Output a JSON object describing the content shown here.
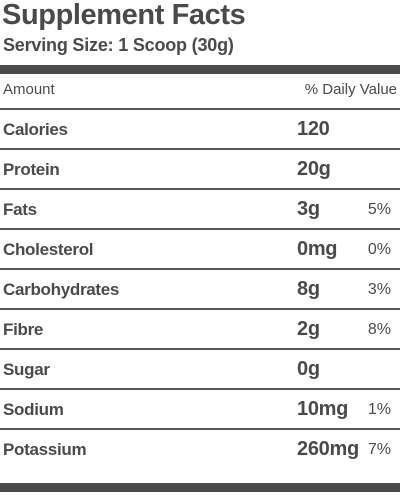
{
  "title": "Supplement Facts",
  "serving_size": "Serving Size: 1 Scoop (30g)",
  "header": {
    "amount": "Amount",
    "daily_value": "% Daily Value"
  },
  "rows": [
    {
      "name": "Calories",
      "amount": "120",
      "dv": ""
    },
    {
      "name": "Protein",
      "amount": "20g",
      "dv": ""
    },
    {
      "name": "Fats",
      "amount": "3g",
      "dv": "5%"
    },
    {
      "name": "Cholesterol",
      "amount": "0mg",
      "dv": "0%"
    },
    {
      "name": "Carbohydrates",
      "amount": "8g",
      "dv": "3%"
    },
    {
      "name": "Fibre",
      "amount": "2g",
      "dv": "8%"
    },
    {
      "name": "Sugar",
      "amount": "0g",
      "dv": ""
    },
    {
      "name": "Sodium",
      "amount": "10mg",
      "dv": "1%"
    },
    {
      "name": "Potassium",
      "amount": "260mg",
      "dv": "7%"
    }
  ],
  "colors": {
    "text": "#4a4a4a",
    "rule": "#4a4a4a",
    "background": "#ffffff"
  }
}
